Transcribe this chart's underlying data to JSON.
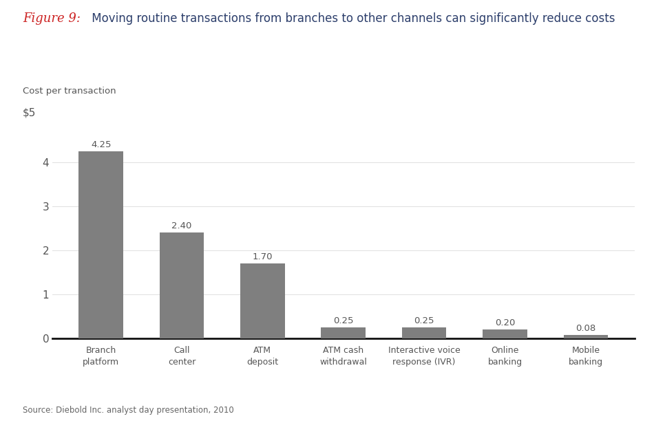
{
  "title_fig": "Figure 9:",
  "title_main": " Moving routine transactions from branches to other channels can significantly reduce costs",
  "cost_label": "Cost per transaction",
  "dollar5_label": "$5",
  "categories": [
    "Branch\nplatform",
    "Call\ncenter",
    "ATM\ndeposit",
    "ATM cash\nwithdrawal",
    "Interactive voice\nresponse (IVR)",
    "Online\nbanking",
    "Mobile\nbanking"
  ],
  "values": [
    4.25,
    2.4,
    1.7,
    0.25,
    0.25,
    0.2,
    0.08
  ],
  "bar_color": "#7f7f7f",
  "value_labels": [
    "4.25",
    "2.40",
    "1.70",
    "0.25",
    "0.25",
    "0.20",
    "0.08"
  ],
  "ylim": [
    0,
    5
  ],
  "yticks": [
    0,
    1,
    2,
    3,
    4
  ],
  "source_text": "Source: Diebold Inc. analyst day presentation, 2010",
  "fig_label_color": "#cc2222",
  "title_text_color": "#2c3e6b",
  "tick_label_color": "#555555",
  "background_color": "#ffffff"
}
